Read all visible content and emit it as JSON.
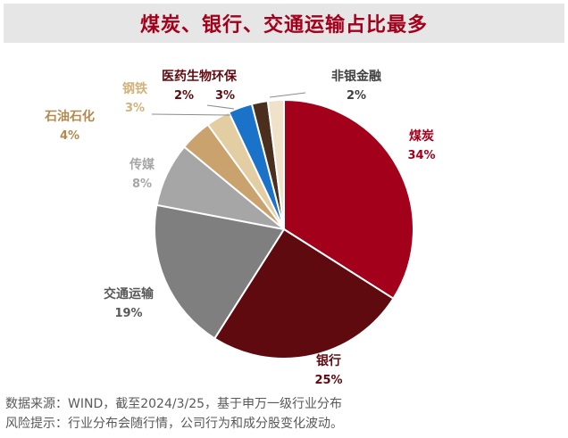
{
  "title": "煤炭、银行、交通运输占比最多",
  "chart_data": {
    "type": "pie",
    "slices": [
      {
        "label": "煤炭",
        "value": 34,
        "value_label": "34%",
        "color": "#a3001b",
        "label_color": "#a3001b"
      },
      {
        "label": "银行",
        "value": 25,
        "value_label": "25%",
        "color": "#5e0a0f",
        "label_color": "#5e0a0f"
      },
      {
        "label": "交通运输",
        "value": 19,
        "value_label": "19%",
        "color": "#7f7f7f",
        "label_color": "#595959"
      },
      {
        "label": "传媒",
        "value": 8,
        "value_label": "8%",
        "color": "#a6a6a6",
        "label_color": "#a6a6a6"
      },
      {
        "label": "石油石化",
        "value": 4,
        "value_label": "4%",
        "color": "#c9a26d",
        "label_color": "#b08a4e"
      },
      {
        "label": "钢铁",
        "value": 3,
        "value_label": "3%",
        "color": "#e3cda3",
        "label_color": "#d1b27a"
      },
      {
        "label": "医药生物环保",
        "value": 3,
        "value_label": "3%",
        "color": "#1b73c9",
        "label_color": "#5e0a0f"
      },
      {
        "label": "医药生物环保",
        "value": 2,
        "value_label": "2%",
        "color": "#4a2e1e",
        "label_color": "#5e0a0f"
      },
      {
        "label": "非银金融",
        "value": 2,
        "value_label": "2%",
        "color": "#f0e2c8",
        "label_color": "#404040"
      }
    ]
  },
  "footer": {
    "source": "数据来源：WIND，截至2024/3/25，基于申万一级行业分布",
    "risk": "风险提示：行业分布会随行情，公司行为和成分股变化波动。"
  }
}
